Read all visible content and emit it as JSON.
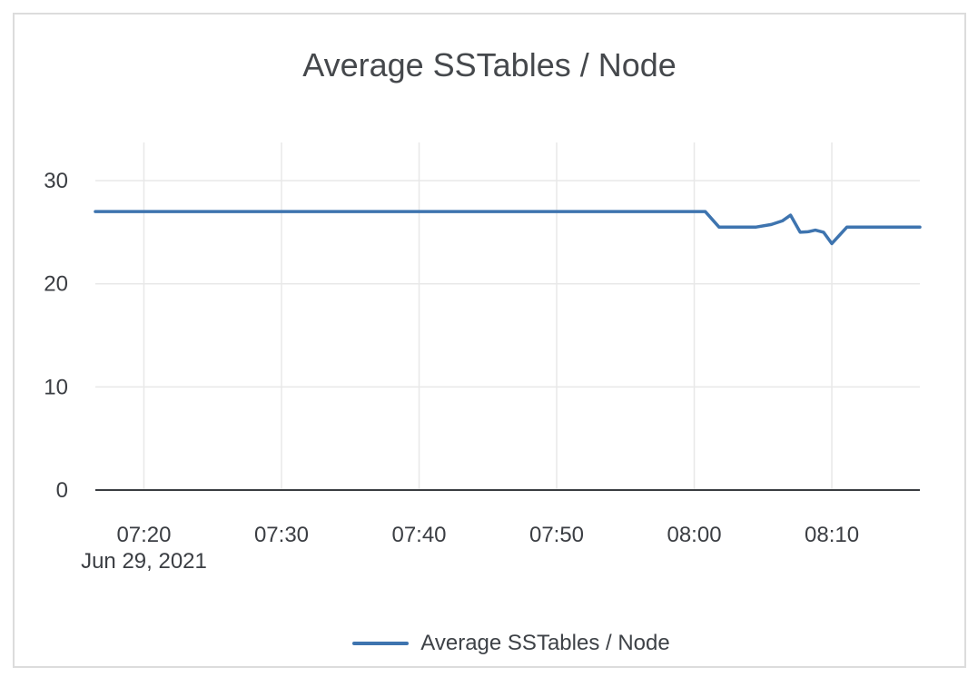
{
  "chart_data": {
    "type": "line",
    "title": "Average SSTables / Node",
    "x_axis": {
      "date_label": "Jun 29, 2021",
      "tick_labels": [
        "07:20",
        "07:30",
        "07:40",
        "07:50",
        "08:00",
        "08:10"
      ],
      "tick_minutes": [
        20,
        30,
        40,
        50,
        60,
        70
      ],
      "domain_minutes": [
        16.47,
        76.4
      ]
    },
    "y_axis": {
      "tick_values": [
        0,
        10,
        20,
        30
      ],
      "domain": [
        0,
        33.7
      ],
      "grid": true
    },
    "series": [
      {
        "name": "Average SSTables / Node",
        "color": "#3e74af",
        "points_min_val": [
          [
            16.47,
            27
          ],
          [
            60.8,
            27
          ],
          [
            61.8,
            25.5
          ],
          [
            64.5,
            25.5
          ],
          [
            65.6,
            25.75
          ],
          [
            66.4,
            26.1
          ],
          [
            67.0,
            26.65
          ],
          [
            67.7,
            25.0
          ],
          [
            68.3,
            25.05
          ],
          [
            68.8,
            25.2
          ],
          [
            69.4,
            25.0
          ],
          [
            70.0,
            23.9
          ],
          [
            71.1,
            25.5
          ],
          [
            76.4,
            25.5
          ]
        ]
      }
    ],
    "legend": {
      "position": "bottom",
      "entries": [
        "Average SSTables / Node"
      ]
    }
  },
  "colors": {
    "line": "#3e74af",
    "grid": "#e8e8e8",
    "axis": "#3a3d41",
    "tick_text": "#3b3e43",
    "title_text": "#45484c",
    "border": "#dcdcdc",
    "background": "#ffffff"
  }
}
